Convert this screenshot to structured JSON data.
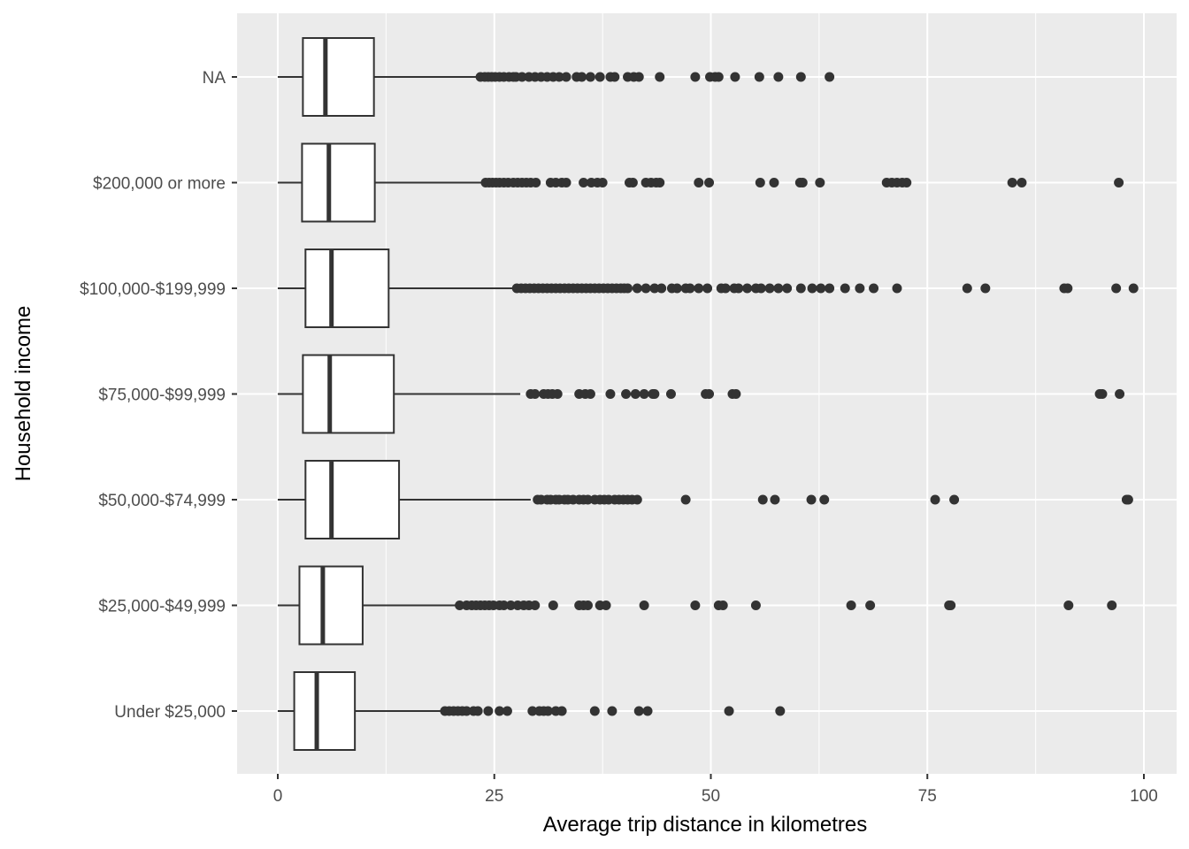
{
  "chart_data": {
    "type": "boxplot",
    "orientation": "horizontal",
    "xlabel": "Average trip distance in kilometres",
    "ylabel": "Household income",
    "xlim": [
      -5,
      104
    ],
    "x_ticks": [
      0,
      25,
      50,
      75,
      100
    ],
    "x_tick_labels": [
      "0",
      "25",
      "50",
      "75",
      "100"
    ],
    "grid": true,
    "colors": {
      "panel": "#EBEBEB",
      "grid": "#FFFFFF",
      "box_fill": "#FFFFFF",
      "box_line": "#333333",
      "point": "#333333"
    },
    "categories": [
      "NA",
      "$200,000 or more",
      "$100,000-$199,999",
      "$75,000-$99,999",
      "$50,000-$74,999",
      "$25,000-$49,999",
      "Under $25,000"
    ],
    "series": [
      {
        "name": "NA",
        "whisker_low": 0,
        "q1": 2.9,
        "median": 5.5,
        "q3": 11.1,
        "whisker_high": 23.1,
        "outliers": [
          23.4,
          23.9,
          24.3,
          24.7,
          25.1,
          25.6,
          26.1,
          26.7,
          27.2,
          27.5,
          28.2,
          29.0,
          29.7,
          30.4,
          31.1,
          31.8,
          32.5,
          33.3,
          34.5,
          35.1,
          36.1,
          37.2,
          38.4,
          38.9,
          40.4,
          41.1,
          41.7,
          44.1,
          48.2,
          49.9,
          50.5,
          50.9,
          52.8,
          55.6,
          57.8,
          60.4,
          63.7
        ]
      },
      {
        "name": "$200,000 or more",
        "whisker_low": 0,
        "q1": 2.8,
        "median": 5.9,
        "q3": 11.2,
        "whisker_high": 23.6,
        "outliers": [
          24.0,
          24.4,
          24.8,
          25.2,
          25.6,
          26.1,
          26.6,
          27.2,
          27.7,
          28.2,
          28.7,
          29.2,
          29.8,
          31.5,
          32.1,
          32.8,
          33.3,
          35.3,
          36.2,
          36.9,
          37.5,
          40.6,
          41.0,
          42.5,
          43.1,
          43.7,
          44.1,
          48.6,
          49.8,
          55.7,
          57.3,
          60.3,
          60.6,
          62.6,
          70.3,
          70.9,
          71.5,
          72.1,
          72.6,
          84.8,
          85.9,
          97.1
        ]
      },
      {
        "name": "$100,000-$199,999",
        "whisker_low": 0,
        "q1": 3.2,
        "median": 6.2,
        "q3": 12.8,
        "whisker_high": 27.2,
        "outliers": [
          27.6,
          28.1,
          28.6,
          29.1,
          29.6,
          30.1,
          30.6,
          31.1,
          31.6,
          32.1,
          32.6,
          33.1,
          33.6,
          34.1,
          34.6,
          35.1,
          35.6,
          36.1,
          36.6,
          37.1,
          37.6,
          38.1,
          38.6,
          39.1,
          39.6,
          40.0,
          40.4,
          41.5,
          42.5,
          43.5,
          44.3,
          45.5,
          46.1,
          47.1,
          47.6,
          48.6,
          49.6,
          51.2,
          51.7,
          52.7,
          53.2,
          54.2,
          55.2,
          55.8,
          56.8,
          57.8,
          58.8,
          60.4,
          61.7,
          62.7,
          63.7,
          65.5,
          67.2,
          68.8,
          71.5,
          79.6,
          81.7,
          90.8,
          91.2,
          96.8,
          98.8
        ]
      },
      {
        "name": "$75,000-$99,999",
        "whisker_low": 0,
        "q1": 2.9,
        "median": 6.0,
        "q3": 13.4,
        "whisker_high": 28.0,
        "outliers": [
          29.2,
          29.7,
          30.7,
          31.2,
          31.7,
          32.3,
          34.8,
          35.5,
          36.1,
          38.4,
          40.2,
          41.3,
          42.3,
          43.3,
          43.5,
          45.4,
          49.4,
          49.8,
          52.5,
          52.9,
          94.9,
          95.2,
          97.2
        ]
      },
      {
        "name": "$50,000-$74,999",
        "whisker_low": 0,
        "q1": 3.2,
        "median": 6.2,
        "q3": 14.0,
        "whisker_high": 29.2,
        "outliers": [
          30.0,
          30.4,
          31.1,
          31.5,
          32.1,
          32.5,
          33.1,
          33.5,
          34.1,
          34.8,
          35.3,
          35.8,
          36.6,
          37.2,
          37.7,
          38.2,
          38.9,
          39.4,
          39.9,
          40.4,
          40.9,
          41.5,
          47.1,
          56.0,
          57.4,
          61.6,
          63.1,
          75.9,
          78.1,
          98.0,
          98.2
        ]
      },
      {
        "name": "$25,000-$49,999",
        "whisker_low": 0,
        "q1": 2.5,
        "median": 5.2,
        "q3": 9.8,
        "whisker_high": 20.7,
        "outliers": [
          21.0,
          21.8,
          22.4,
          22.9,
          23.4,
          23.9,
          24.4,
          24.9,
          25.6,
          26.1,
          26.9,
          27.7,
          28.4,
          29.0,
          29.7,
          31.8,
          34.8,
          35.3,
          35.8,
          37.2,
          37.9,
          42.3,
          48.2,
          50.9,
          51.4,
          55.2,
          66.2,
          68.4,
          77.5,
          77.7,
          91.3,
          96.3
        ]
      },
      {
        "name": "Under $25,000",
        "whisker_low": 0,
        "q1": 1.9,
        "median": 4.5,
        "q3": 8.9,
        "whisker_high": 19.0,
        "outliers": [
          19.3,
          19.8,
          20.3,
          20.8,
          21.3,
          21.8,
          22.6,
          23.1,
          24.3,
          25.6,
          26.5,
          29.4,
          30.2,
          30.7,
          31.2,
          32.1,
          32.8,
          36.6,
          38.6,
          41.7,
          42.7,
          52.1,
          58.0
        ]
      }
    ]
  }
}
